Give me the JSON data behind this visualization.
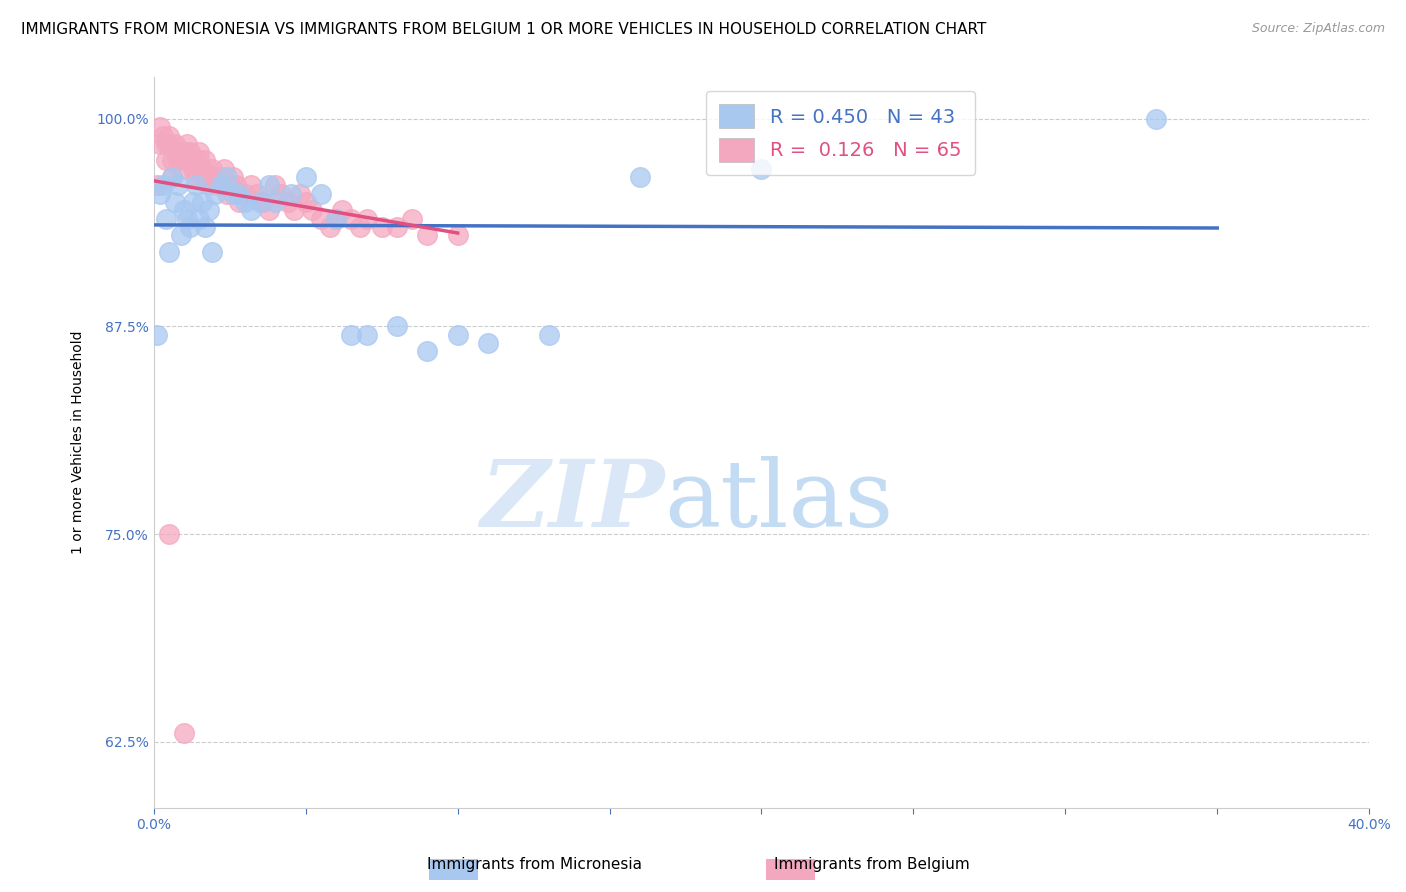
{
  "title": "IMMIGRANTS FROM MICRONESIA VS IMMIGRANTS FROM BELGIUM 1 OR MORE VEHICLES IN HOUSEHOLD CORRELATION CHART",
  "source": "Source: ZipAtlas.com",
  "ylabel": "1 or more Vehicles in Household",
  "xlim": [
    0.0,
    0.4
  ],
  "ylim": [
    0.585,
    1.025
  ],
  "micronesia_color": "#a8c8f0",
  "belgium_color": "#f4a8c0",
  "micronesia_R": 0.45,
  "micronesia_N": 43,
  "belgium_R": 0.126,
  "belgium_N": 65,
  "trendline_micronesia_color": "#4472c4",
  "trendline_belgium_color": "#e05080",
  "watermark_zip": "ZIP",
  "watermark_atlas": "atlas",
  "grid_color": "#cccccc",
  "background_color": "#ffffff",
  "title_fontsize": 11,
  "tick_fontsize": 10,
  "tick_color": "#4472c4",
  "micronesia_x": [
    0.001,
    0.002,
    0.003,
    0.004,
    0.005,
    0.006,
    0.007,
    0.008,
    0.009,
    0.01,
    0.011,
    0.012,
    0.013,
    0.014,
    0.015,
    0.016,
    0.017,
    0.018,
    0.019,
    0.02,
    0.022,
    0.024,
    0.026,
    0.028,
    0.03,
    0.032,
    0.035,
    0.038,
    0.04,
    0.045,
    0.05,
    0.055,
    0.06,
    0.065,
    0.07,
    0.08,
    0.09,
    0.1,
    0.11,
    0.13,
    0.16,
    0.2,
    0.33
  ],
  "micronesia_y": [
    0.87,
    0.955,
    0.96,
    0.94,
    0.92,
    0.965,
    0.95,
    0.96,
    0.93,
    0.945,
    0.94,
    0.935,
    0.95,
    0.96,
    0.94,
    0.95,
    0.935,
    0.945,
    0.92,
    0.955,
    0.96,
    0.965,
    0.955,
    0.955,
    0.95,
    0.945,
    0.95,
    0.96,
    0.95,
    0.955,
    0.965,
    0.955,
    0.94,
    0.87,
    0.87,
    0.875,
    0.86,
    0.87,
    0.865,
    0.87,
    0.965,
    0.97,
    1.0
  ],
  "belgium_x": [
    0.001,
    0.002,
    0.002,
    0.003,
    0.004,
    0.004,
    0.005,
    0.005,
    0.006,
    0.006,
    0.007,
    0.007,
    0.008,
    0.008,
    0.009,
    0.01,
    0.01,
    0.011,
    0.012,
    0.012,
    0.013,
    0.014,
    0.015,
    0.015,
    0.016,
    0.016,
    0.017,
    0.018,
    0.018,
    0.019,
    0.02,
    0.021,
    0.022,
    0.023,
    0.024,
    0.025,
    0.026,
    0.027,
    0.028,
    0.03,
    0.032,
    0.034,
    0.036,
    0.038,
    0.04,
    0.042,
    0.044,
    0.046,
    0.048,
    0.05,
    0.052,
    0.055,
    0.058,
    0.06,
    0.062,
    0.065,
    0.068,
    0.07,
    0.075,
    0.08,
    0.085,
    0.09,
    0.1,
    0.005,
    0.01
  ],
  "belgium_y": [
    0.96,
    0.985,
    0.995,
    0.99,
    0.985,
    0.975,
    0.985,
    0.99,
    0.965,
    0.975,
    0.98,
    0.985,
    0.975,
    0.98,
    0.97,
    0.975,
    0.98,
    0.985,
    0.975,
    0.98,
    0.97,
    0.965,
    0.975,
    0.98,
    0.965,
    0.97,
    0.975,
    0.965,
    0.96,
    0.97,
    0.965,
    0.96,
    0.965,
    0.97,
    0.955,
    0.96,
    0.965,
    0.96,
    0.95,
    0.955,
    0.96,
    0.955,
    0.95,
    0.945,
    0.96,
    0.955,
    0.95,
    0.945,
    0.955,
    0.95,
    0.945,
    0.94,
    0.935,
    0.94,
    0.945,
    0.94,
    0.935,
    0.94,
    0.935,
    0.935,
    0.94,
    0.93,
    0.93,
    0.75,
    0.63
  ]
}
